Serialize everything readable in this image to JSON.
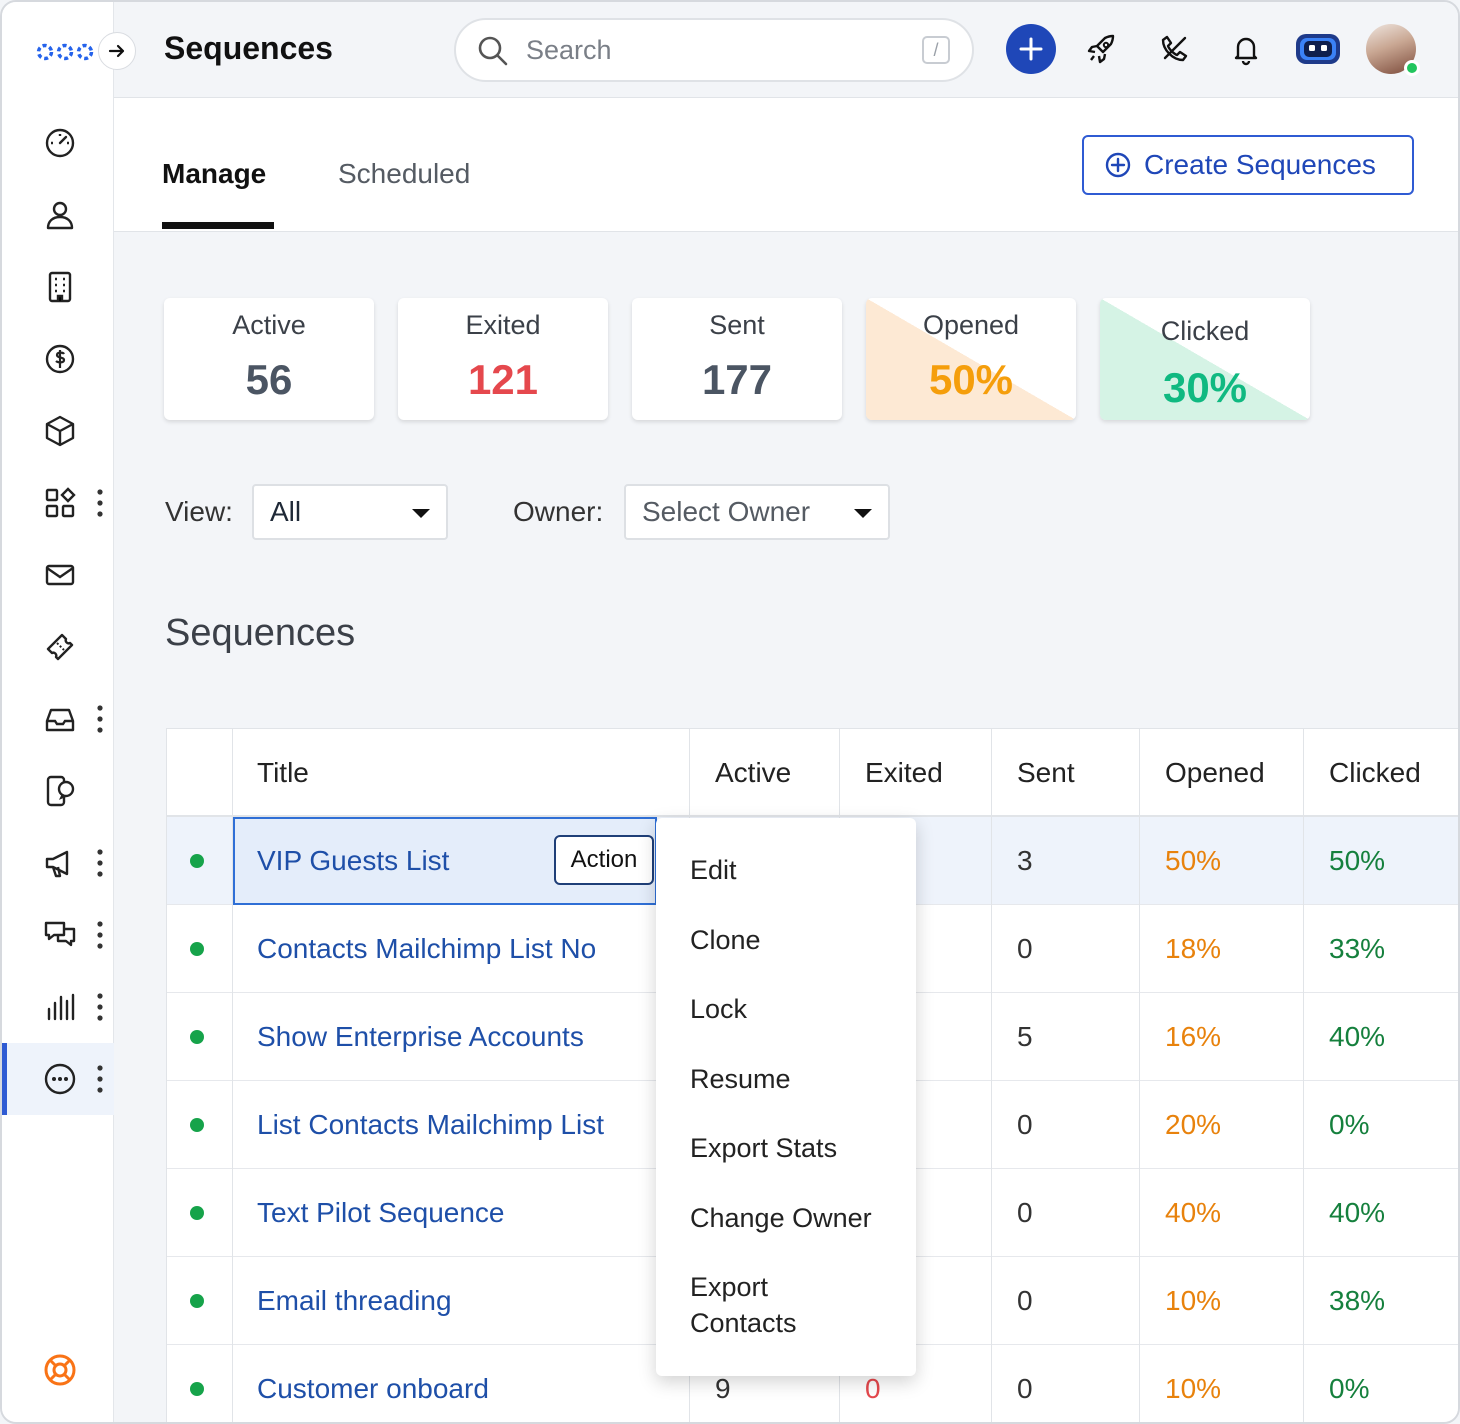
{
  "header": {
    "title": "Sequences",
    "search_placeholder": "Search",
    "search_shortcut": "/"
  },
  "sidebar": {
    "items": [
      {
        "icon": "dashboard-icon",
        "more": false
      },
      {
        "icon": "contact-icon",
        "more": false
      },
      {
        "icon": "building-icon",
        "more": false
      },
      {
        "icon": "dollar-icon",
        "more": false
      },
      {
        "icon": "product-box-icon",
        "more": false
      },
      {
        "icon": "apps-grid-icon",
        "more": true
      },
      {
        "icon": "mail-icon",
        "more": false
      },
      {
        "icon": "ticket-icon",
        "more": false
      },
      {
        "icon": "inbox-icon",
        "more": true
      },
      {
        "icon": "phone-chat-icon",
        "more": false
      },
      {
        "icon": "megaphone-icon",
        "more": true
      },
      {
        "icon": "chat-bubbles-icon",
        "more": true
      },
      {
        "icon": "reports-bars-icon",
        "more": true
      },
      {
        "icon": "more-circle-icon",
        "more": true,
        "active": true
      }
    ]
  },
  "tabs": {
    "manage": "Manage",
    "scheduled": "Scheduled",
    "create_button": "Create Sequences"
  },
  "stats": [
    {
      "label": "Active",
      "value": "56",
      "color": "#4b5563"
    },
    {
      "label": "Exited",
      "value": "121",
      "color": "#e5484d"
    },
    {
      "label": "Sent",
      "value": "177",
      "color": "#4b5563"
    },
    {
      "label": "Opened",
      "value": "50%",
      "color": "#f59e0b"
    },
    {
      "label": "Clicked",
      "value": "30%",
      "color": "#10b981"
    }
  ],
  "filters": {
    "view_label": "View:",
    "view_value": "All",
    "owner_label": "Owner:",
    "owner_placeholder": "Select Owner"
  },
  "section_title": "Sequences",
  "table": {
    "columns": [
      "Title",
      "Active",
      "Exited",
      "Sent",
      "Opened",
      "Clicked"
    ],
    "rows": [
      {
        "title": "VIP Guests List",
        "active": "",
        "exited": "",
        "sent": "3",
        "opened": "50%",
        "clicked": "50%"
      },
      {
        "title": "Contacts Mailchimp List No",
        "active": "",
        "exited": "",
        "sent": "0",
        "opened": "18%",
        "clicked": "33%"
      },
      {
        "title": "Show Enterprise Accounts",
        "active": "",
        "exited": "",
        "sent": "5",
        "opened": "16%",
        "clicked": "40%"
      },
      {
        "title": "List Contacts Mailchimp List",
        "active": "",
        "exited": "",
        "sent": "0",
        "opened": "20%",
        "clicked": "0%"
      },
      {
        "title": "Text Pilot Sequence",
        "active": "",
        "exited": "",
        "sent": "0",
        "opened": "40%",
        "clicked": "40%"
      },
      {
        "title": "Email threading",
        "active": "",
        "exited": "",
        "sent": "0",
        "opened": "10%",
        "clicked": "38%"
      },
      {
        "title": "Customer onboard",
        "active": "9",
        "exited": "0",
        "sent": "0",
        "opened": "10%",
        "clicked": "0%"
      }
    ],
    "action_label": "Action"
  },
  "action_menu": [
    "Edit",
    "Clone",
    "Lock",
    "Resume",
    "Export Stats",
    "Change Owner",
    "Export\nContacts"
  ],
  "colors": {
    "link": "#1e4fa8",
    "opened": "#e8820c",
    "clicked": "#15803d",
    "exited": "#e5484d",
    "accent": "#1f47b8"
  }
}
